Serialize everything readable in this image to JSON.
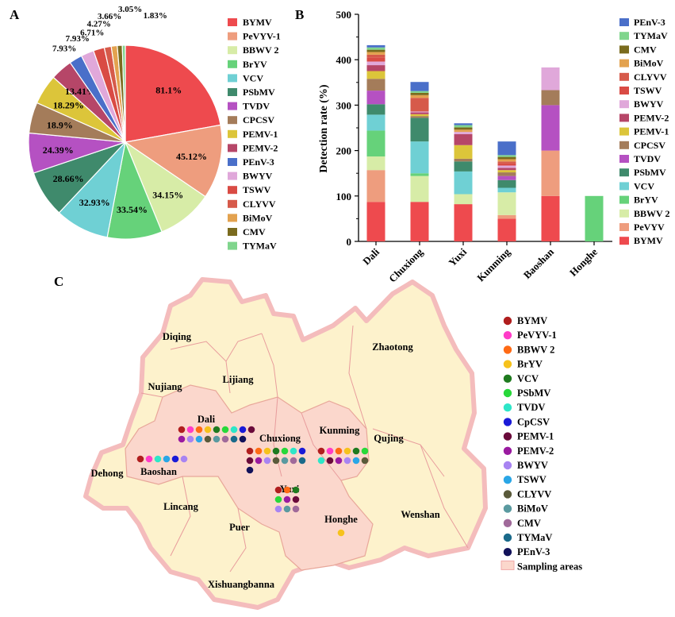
{
  "panels": {
    "a": "A",
    "b": "B",
    "c": "C"
  },
  "colors": {
    "BYMV": "#ee4a4e",
    "PeVYV-1": "#ee9d7e",
    "BBWV 2": "#d7eca7",
    "BrYV": "#66d27a",
    "VCV": "#6fd0d4",
    "PSbMV": "#3f8a6c",
    "TVDV": "#b551c2",
    "CPCSV": "#a47c5a",
    "PEMV-1": "#dcc53a",
    "PEMV-2": "#b64668",
    "PEnV-3": "#4a6fc9",
    "BWYV": "#e0a8da",
    "TSWV": "#d94b44",
    "CLYVV": "#d65a4a",
    "BiMoV": "#e3a24f",
    "CMV": "#7a6b1e",
    "TYMaV": "#80d58d"
  },
  "chart_data": [
    {
      "type": "pie",
      "panel": "A",
      "labels": [
        "BYMV",
        "PeVYV-1",
        "BBWV 2",
        "BrYV",
        "VCV",
        "PSbMV",
        "TVDV",
        "CPCSV",
        "PEMV-1",
        "PEMV-2",
        "PEnV-3",
        "BWYV",
        "TSWV",
        "CLYVV",
        "BiMoV",
        "CMV",
        "TYMaV"
      ],
      "values": [
        81.1,
        45.12,
        34.15,
        33.54,
        32.93,
        28.66,
        24.39,
        18.9,
        18.29,
        13.41,
        7.93,
        7.93,
        6.71,
        4.27,
        3.66,
        3.05,
        1.83
      ],
      "value_labels": [
        "81.1%",
        "45.12%",
        "34.15%",
        "33.54%",
        "32.93%",
        "28.66%",
        "24.39%",
        "18.9%",
        "18.29%",
        "13.41%",
        "7.93%",
        "7.93%",
        "6.71%",
        "4.27%",
        "3.66%",
        "3.05%",
        "1.83%"
      ],
      "legend": [
        "BYMV",
        "PeVYV-1",
        "BBWV 2",
        "BrYV",
        "VCV",
        "PSbMV",
        "TVDV",
        "CPCSV",
        "PEMV-1",
        "PEMV-2",
        "PEnV-3",
        "BWYV",
        "TSWV",
        "CLYVV",
        "BiMoV",
        "CMV",
        "TYMaV"
      ]
    },
    {
      "type": "bar",
      "stacked": true,
      "panel": "B",
      "categories": [
        "Dali",
        "Chuxiong",
        "Yuxi",
        "Kunming",
        "Baoshan",
        "Honghe"
      ],
      "ylabel": "Detection rate (%)",
      "ylim": [
        0,
        500
      ],
      "yticks": [
        "0",
        "100",
        "200",
        "300",
        "400",
        "500"
      ],
      "legend": [
        "PEnV-3",
        "TYMaV",
        "CMV",
        "BiMoV",
        "CLYVV",
        "TSWV",
        "BWYV",
        "PEMV-2",
        "PEMV-1",
        "CPCSV",
        "TVDV",
        "PSbMV",
        "VCV",
        "BrYV",
        "BBWV 2",
        "PeVYV",
        "BYMV"
      ],
      "series": [
        {
          "name": "BYMV",
          "key": "BYMV",
          "values": [
            87,
            87,
            82,
            50,
            100,
            0
          ]
        },
        {
          "name": "PeVYV",
          "key": "PeVYV-1",
          "values": [
            70,
            0,
            0,
            8,
            100,
            0
          ]
        },
        {
          "name": "BBWV 2",
          "key": "BBWV 2",
          "values": [
            30,
            57,
            22,
            50,
            0,
            0
          ]
        },
        {
          "name": "BrYV",
          "key": "BrYV",
          "values": [
            57,
            6,
            0,
            0,
            0,
            100
          ]
        },
        {
          "name": "VCV",
          "key": "VCV",
          "values": [
            35,
            70,
            50,
            10,
            0,
            0
          ]
        },
        {
          "name": "PSbMV",
          "key": "PSbMV",
          "values": [
            23,
            52,
            22,
            17,
            0,
            0
          ]
        },
        {
          "name": "TVDV",
          "key": "TVDV",
          "values": [
            30,
            0,
            0,
            9,
            100,
            0
          ]
        },
        {
          "name": "CPCSV",
          "key": "CPCSV",
          "values": [
            26,
            4,
            6,
            8,
            33,
            0
          ]
        },
        {
          "name": "PEMV-1",
          "key": "PEMV-1",
          "values": [
            17,
            4,
            30,
            5,
            0,
            0
          ]
        },
        {
          "name": "PEMV-2",
          "key": "PEMV-2",
          "values": [
            13,
            4,
            24,
            5,
            0,
            0
          ]
        },
        {
          "name": "BWYV",
          "key": "BWYV",
          "values": [
            8,
            2,
            5,
            5,
            50,
            0
          ]
        },
        {
          "name": "TSWV",
          "key": "TSWV",
          "values": [
            9,
            0,
            0,
            5,
            0,
            0
          ]
        },
        {
          "name": "CLYVV",
          "key": "CLYVV",
          "values": [
            6,
            30,
            0,
            4,
            0,
            0
          ]
        },
        {
          "name": "BiMoV",
          "key": "BiMoV",
          "values": [
            6,
            6,
            5,
            5,
            0,
            0
          ]
        },
        {
          "name": "CMV",
          "key": "CMV",
          "values": [
            5,
            5,
            5,
            5,
            0,
            0
          ]
        },
        {
          "name": "TYMaV",
          "key": "TYMaV",
          "values": [
            5,
            4,
            5,
            4,
            0,
            0
          ]
        },
        {
          "name": "PEnV-3",
          "key": "PEnV-3",
          "values": [
            5,
            20,
            4,
            30,
            0,
            0
          ]
        }
      ]
    }
  ],
  "map": {
    "regions": [
      "Diqing",
      "Nujiang",
      "Lijiang",
      "Zhaotong",
      "Dali",
      "Chuxiong",
      "Kunming",
      "Qujing",
      "Dehong",
      "Baoshan",
      "Yuxi",
      "Lincang",
      "Honghe",
      "Wenshan",
      "Puer",
      "Xishuangbanna"
    ],
    "legend": [
      {
        "label": "BYMV",
        "color": "#b01e1e"
      },
      {
        "label": "PeVYV-1",
        "color": "#ff3cc8"
      },
      {
        "label": "BBWV 2",
        "color": "#ff6a14"
      },
      {
        "label": "BrYV",
        "color": "#f6c21c"
      },
      {
        "label": "VCV",
        "color": "#1f7a1f"
      },
      {
        "label": "PSbMV",
        "color": "#28d83a"
      },
      {
        "label": "TVDV",
        "color": "#2ee6c8"
      },
      {
        "label": "CpCSV",
        "color": "#1a1ad8"
      },
      {
        "label": "PEMV-1",
        "color": "#6a0a3a"
      },
      {
        "label": "PEMV-2",
        "color": "#9a1aa0"
      },
      {
        "label": "BWYV",
        "color": "#a884f2"
      },
      {
        "label": "TSWV",
        "color": "#2aa6e6"
      },
      {
        "label": "CLYVV",
        "color": "#5a5a3a"
      },
      {
        "label": "BiMoV",
        "color": "#5a9aa0"
      },
      {
        "label": "CMV",
        "color": "#a06a9a"
      },
      {
        "label": "TYMaV",
        "color": "#1a6a8a"
      },
      {
        "label": "PEnV-3",
        "color": "#12125a"
      }
    ],
    "sampling_label": "Sampling areas"
  }
}
